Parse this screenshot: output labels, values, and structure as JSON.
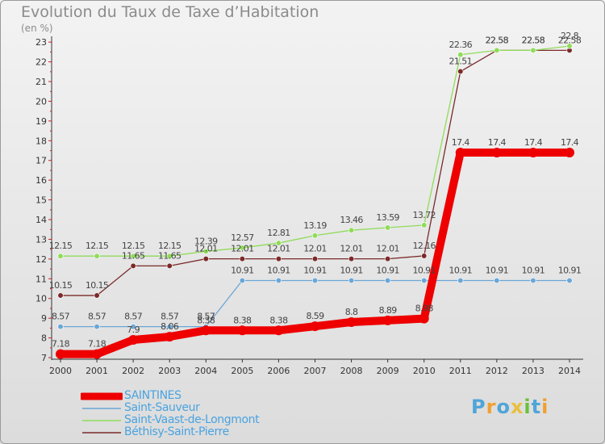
{
  "chart_data": {
    "type": "line",
    "title": "Evolution du Taux de Taxe d’Habitation",
    "unit_label": "(en %)",
    "x": [
      "2000",
      "2001",
      "2002",
      "2003",
      "2004",
      "2005",
      "2006",
      "2007",
      "2008",
      "2009",
      "2010",
      "2011",
      "2012",
      "2013",
      "2014"
    ],
    "y_ticks": [
      "7",
      "8",
      "9",
      "10",
      "11",
      "12",
      "13",
      "14",
      "15",
      "16",
      "17",
      "18",
      "19",
      "20",
      "21",
      "22",
      "23"
    ],
    "ylim": [
      7,
      23
    ],
    "grid": false,
    "legend_position": "bottom-left",
    "series": [
      {
        "name": "SAINTINES",
        "color": "#ee0000",
        "values": [
          7.18,
          7.18,
          7.9,
          8.06,
          8.38,
          8.38,
          8.38,
          8.59,
          8.8,
          8.89,
          8.98,
          17.4,
          17.4,
          17.4,
          17.4
        ],
        "labels": [
          "7.18",
          "7.18",
          "7.9",
          "8.06",
          "8.38",
          "8.38",
          "8.38",
          "8.59",
          "8.8",
          "8.89",
          "8.98",
          "17.4",
          "17.4",
          "17.4",
          "17.4"
        ]
      },
      {
        "name": "Saint-Sauveur",
        "color": "#6aa6d6",
        "values": [
          8.57,
          8.57,
          8.57,
          8.57,
          8.57,
          10.91,
          10.91,
          10.91,
          10.91,
          10.91,
          10.91,
          10.91,
          10.91,
          10.91,
          10.91
        ],
        "labels": [
          "8.57",
          "8.57",
          "8.57",
          "8.57",
          "8.57",
          "10.91",
          "10.91",
          "10.91",
          "10.91",
          "10.91",
          "10.91",
          "10.91",
          "10.91",
          "10.91",
          "10.91"
        ]
      },
      {
        "name": "Saint-Vaast-de-Longmont",
        "color": "#90dc5a",
        "values": [
          12.15,
          12.15,
          12.15,
          12.15,
          12.39,
          12.57,
          12.81,
          13.19,
          13.46,
          13.59,
          13.72,
          22.36,
          22.58,
          22.58,
          22.8
        ],
        "labels": [
          "12.15",
          "12.15",
          "12.15",
          "12.15",
          "12.39",
          "12.57",
          "12.81",
          "13.19",
          "13.46",
          "13.59",
          "13.72",
          "22.36",
          "22.58",
          "22.58",
          "22.8"
        ]
      },
      {
        "name": "Béthisy-Saint-Pierre",
        "color": "#7b2a2a",
        "values": [
          10.15,
          10.15,
          11.65,
          11.65,
          12.01,
          12.01,
          12.01,
          12.01,
          12.01,
          12.01,
          12.16,
          21.51,
          22.58,
          22.58,
          22.58
        ],
        "labels": [
          "10.15",
          "10.15",
          "11.65",
          "11.65",
          "12.01",
          "12.01",
          "12.01",
          "12.01",
          "12.01",
          "12.01",
          "12.16",
          "21.51",
          "22.58",
          "22.58",
          "22.58"
        ]
      }
    ]
  },
  "logo": {
    "letters": [
      "P",
      "r",
      "o",
      "x",
      "i",
      "t",
      "i"
    ]
  }
}
